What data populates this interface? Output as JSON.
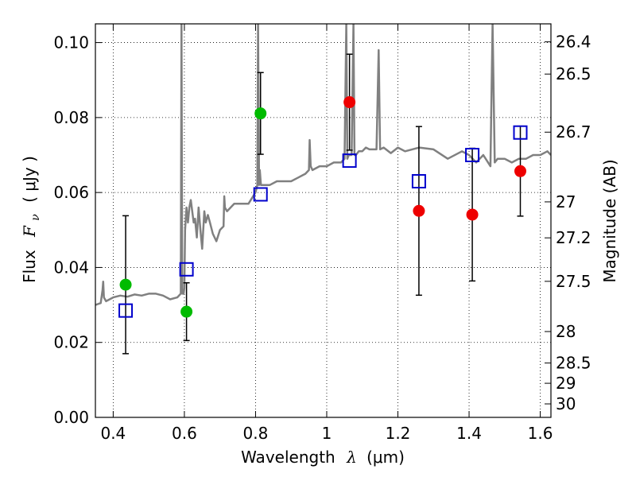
{
  "chart_data": {
    "type": "scatter",
    "xlabel": "Wavelength λ (μm)",
    "xlabel_parts": {
      "text": "Wavelength",
      "symbol": "λ",
      "unit": "(μm)"
    },
    "ylabel": "Flux F_ν (μJy)",
    "ylabel_parts": {
      "text": "Flux",
      "symbol": "F",
      "subscript": "ν",
      "unit": "( μJy )"
    },
    "y2label": "Magnitude (AB)",
    "xlim": [
      0.35,
      1.63
    ],
    "ylim": [
      0.0,
      0.105
    ],
    "x_ticks": [
      0.4,
      0.6,
      0.8,
      1.0,
      1.2,
      1.4,
      1.6
    ],
    "x_tick_labels": [
      "0.4",
      "0.6",
      "0.8",
      "1",
      "1.2",
      "1.4",
      "1.6"
    ],
    "y_ticks": [
      0.0,
      0.02,
      0.04,
      0.06,
      0.08,
      0.1
    ],
    "y_tick_labels": [
      "0.00",
      "0.02",
      "0.04",
      "0.06",
      "0.08",
      "0.10"
    ],
    "y2_ticks": [
      {
        "label": "26.4",
        "flux": 0.1002
      },
      {
        "label": "26.5",
        "flux": 0.0916
      },
      {
        "label": "26.7",
        "flux": 0.0761
      },
      {
        "label": "27",
        "flux": 0.0575
      },
      {
        "label": "27.2",
        "flux": 0.0479
      },
      {
        "label": "27.5",
        "flux": 0.0363
      },
      {
        "label": "28",
        "flux": 0.0229
      },
      {
        "label": "28.5",
        "flux": 0.0145
      },
      {
        "label": "29",
        "flux": 0.0091
      },
      {
        "label": "30",
        "flux": 0.0036
      }
    ],
    "grid": true,
    "colors": {
      "green_points": "#00bb00",
      "red_points": "#ee0000",
      "model_squares": "#0000cc",
      "spectrum": "#808080",
      "error_bars": "#000000"
    },
    "series": [
      {
        "marker": "circle",
        "color": "#00bb00",
        "points": [
          {
            "x": 0.435,
            "y": 0.0354,
            "yerr_low": 0.0184,
            "yerr_high": 0.0184
          },
          {
            "x": 0.606,
            "y": 0.0282,
            "yerr_low": 0.0077,
            "yerr_high": 0.0077
          },
          {
            "x": 0.814,
            "y": 0.0811,
            "yerr_low": 0.0109,
            "yerr_high": 0.0109
          }
        ]
      },
      {
        "marker": "circle",
        "color": "#ee0000",
        "points": [
          {
            "x": 1.064,
            "y": 0.0841,
            "yerr_low": 0.0128,
            "yerr_high": 0.0128
          },
          {
            "x": 1.259,
            "y": 0.0551,
            "yerr_low": 0.0225,
            "yerr_high": 0.0225
          },
          {
            "x": 1.409,
            "y": 0.0541,
            "yerr_low": 0.0177,
            "yerr_high": 0.0177
          },
          {
            "x": 1.544,
            "y": 0.0657,
            "yerr_low": 0.012,
            "yerr_high": 0.012
          }
        ]
      },
      {
        "marker": "open-square",
        "color": "#0000cc",
        "points": [
          {
            "x": 0.435,
            "y": 0.0285
          },
          {
            "x": 0.606,
            "y": 0.0395
          },
          {
            "x": 0.814,
            "y": 0.0595
          },
          {
            "x": 1.064,
            "y": 0.0685
          },
          {
            "x": 1.259,
            "y": 0.063
          },
          {
            "x": 1.409,
            "y": 0.07
          },
          {
            "x": 1.544,
            "y": 0.076
          }
        ]
      },
      {
        "type": "line",
        "color": "#808080",
        "x": [
          0.35,
          0.365,
          0.37,
          0.372,
          0.374,
          0.38,
          0.39,
          0.4,
          0.42,
          0.44,
          0.46,
          0.48,
          0.5,
          0.52,
          0.54,
          0.56,
          0.58,
          0.59,
          0.592,
          0.594,
          0.598,
          0.6,
          0.602,
          0.606,
          0.61,
          0.614,
          0.618,
          0.622,
          0.626,
          0.63,
          0.635,
          0.64,
          0.645,
          0.65,
          0.656,
          0.66,
          0.666,
          0.672,
          0.68,
          0.69,
          0.7,
          0.71,
          0.712,
          0.714,
          0.72,
          0.74,
          0.76,
          0.78,
          0.8,
          0.805,
          0.807,
          0.81,
          0.812,
          0.815,
          0.82,
          0.83,
          0.84,
          0.86,
          0.88,
          0.9,
          0.92,
          0.94,
          0.95,
          0.952,
          0.955,
          0.96,
          0.98,
          1.0,
          1.02,
          1.04,
          1.05,
          1.055,
          1.058,
          1.062,
          1.07,
          1.075,
          1.078,
          1.082,
          1.09,
          1.1,
          1.11,
          1.12,
          1.14,
          1.146,
          1.15,
          1.16,
          1.18,
          1.2,
          1.22,
          1.26,
          1.3,
          1.34,
          1.38,
          1.4,
          1.42,
          1.44,
          1.46,
          1.466,
          1.472,
          1.48,
          1.5,
          1.52,
          1.54,
          1.56,
          1.58,
          1.6,
          1.62,
          1.63
        ],
        "y": [
          0.03,
          0.0305,
          0.034,
          0.0362,
          0.032,
          0.031,
          0.0315,
          0.032,
          0.0325,
          0.0322,
          0.0328,
          0.0325,
          0.033,
          0.033,
          0.0325,
          0.0315,
          0.032,
          0.033,
          0.105,
          0.033,
          0.033,
          0.0345,
          0.05,
          0.056,
          0.052,
          0.056,
          0.058,
          0.055,
          0.052,
          0.053,
          0.048,
          0.056,
          0.05,
          0.045,
          0.055,
          0.052,
          0.054,
          0.052,
          0.049,
          0.047,
          0.05,
          0.051,
          0.059,
          0.056,
          0.055,
          0.057,
          0.057,
          0.057,
          0.06,
          0.062,
          0.105,
          0.062,
          0.066,
          0.062,
          0.062,
          0.062,
          0.062,
          0.063,
          0.063,
          0.063,
          0.064,
          0.065,
          0.066,
          0.074,
          0.067,
          0.066,
          0.067,
          0.067,
          0.068,
          0.068,
          0.069,
          0.105,
          0.069,
          0.07,
          0.07,
          0.105,
          0.07,
          0.07,
          0.071,
          0.071,
          0.072,
          0.0715,
          0.0715,
          0.098,
          0.0715,
          0.072,
          0.0705,
          0.072,
          0.071,
          0.072,
          0.0715,
          0.069,
          0.071,
          0.07,
          0.068,
          0.07,
          0.067,
          0.105,
          0.068,
          0.069,
          0.069,
          0.068,
          0.069,
          0.069,
          0.07,
          0.07,
          0.071,
          0.07
        ]
      }
    ]
  }
}
